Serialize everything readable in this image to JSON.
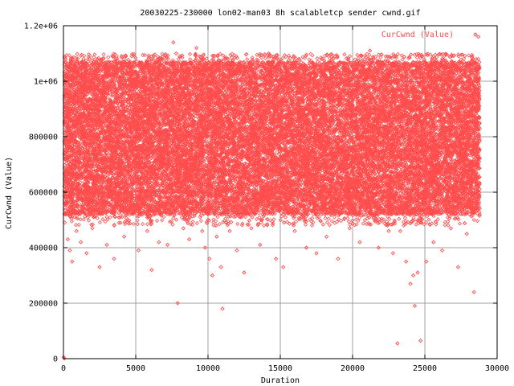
{
  "chart_data": {
    "type": "scatter",
    "title": "20030225-230000 lon02-man03 8h scalabletcp sender cwnd.gif",
    "xlabel": "Duration",
    "ylabel": "CurCwnd (Value)",
    "xlim": [
      0,
      30000
    ],
    "ylim": [
      0,
      1200000
    ],
    "x_ticks": [
      0,
      5000,
      10000,
      15000,
      20000,
      25000,
      30000
    ],
    "x_tick_labels": [
      "0",
      "5000",
      "10000",
      "15000",
      "20000",
      "25000",
      "30000"
    ],
    "y_ticks": [
      0,
      200000,
      400000,
      600000,
      800000,
      1000000,
      1200000
    ],
    "y_tick_labels": [
      "0",
      "200000",
      "400000",
      "600000",
      "800000",
      "1e+06",
      "1.2e+06"
    ],
    "grid": true,
    "legend_position": "top-right",
    "series": [
      {
        "name": "CurCwnd (Value)",
        "color": "#ff4d4d",
        "marker": "diamond",
        "dense_band": {
          "x_range": [
            0,
            28800
          ],
          "y_range": [
            520000,
            1070000
          ]
        },
        "points": [
          [
            10,
            5000
          ],
          [
            60,
            1000
          ],
          [
            200,
            1055000
          ],
          [
            150,
            520000
          ],
          [
            300,
            430000
          ],
          [
            450,
            390000
          ],
          [
            600,
            350000
          ],
          [
            900,
            460000
          ],
          [
            1200,
            420000
          ],
          [
            1600,
            380000
          ],
          [
            2000,
            470000
          ],
          [
            2500,
            330000
          ],
          [
            3000,
            410000
          ],
          [
            3500,
            360000
          ],
          [
            4200,
            440000
          ],
          [
            5200,
            390000
          ],
          [
            5800,
            460000
          ],
          [
            6100,
            320000
          ],
          [
            6600,
            420000
          ],
          [
            7200,
            410000
          ],
          [
            7600,
            1140000
          ],
          [
            7800,
            1100000
          ],
          [
            7900,
            200000
          ],
          [
            8300,
            470000
          ],
          [
            8700,
            430000
          ],
          [
            9200,
            1120000
          ],
          [
            9600,
            460000
          ],
          [
            9800,
            400000
          ],
          [
            10100,
            360000
          ],
          [
            10300,
            300000
          ],
          [
            10600,
            440000
          ],
          [
            10900,
            330000
          ],
          [
            11000,
            180000
          ],
          [
            11500,
            460000
          ],
          [
            12000,
            390000
          ],
          [
            12500,
            310000
          ],
          [
            13000,
            470000
          ],
          [
            13600,
            410000
          ],
          [
            14200,
            1100000
          ],
          [
            14700,
            360000
          ],
          [
            15200,
            330000
          ],
          [
            16000,
            460000
          ],
          [
            16800,
            400000
          ],
          [
            17500,
            380000
          ],
          [
            18200,
            440000
          ],
          [
            19000,
            360000
          ],
          [
            19800,
            470000
          ],
          [
            20500,
            420000
          ],
          [
            21200,
            1110000
          ],
          [
            21800,
            400000
          ],
          [
            22500,
            460000
          ],
          [
            22800,
            380000
          ],
          [
            23100,
            55000
          ],
          [
            23300,
            460000
          ],
          [
            23700,
            350000
          ],
          [
            24000,
            270000
          ],
          [
            24200,
            300000
          ],
          [
            24300,
            190000
          ],
          [
            24500,
            310000
          ],
          [
            24700,
            65000
          ],
          [
            25100,
            350000
          ],
          [
            25600,
            420000
          ],
          [
            26200,
            390000
          ],
          [
            26800,
            470000
          ],
          [
            27300,
            330000
          ],
          [
            27900,
            450000
          ],
          [
            28400,
            240000
          ],
          [
            28700,
            1160000
          ],
          [
            28800,
            520000
          ]
        ]
      }
    ]
  }
}
